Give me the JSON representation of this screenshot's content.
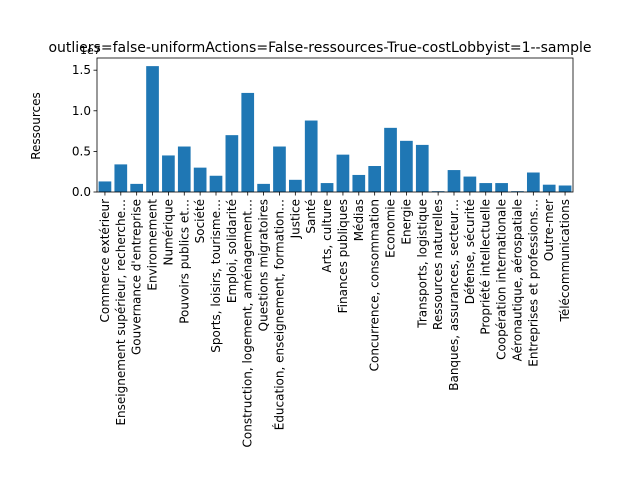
{
  "chart_data": {
    "type": "bar",
    "title": "outliers=false-uniformActions=False-ressources-True-costLobbyist=1--sample",
    "xlabel": "",
    "ylabel": "Ressources",
    "offset_text": "1e7",
    "ylim": [
      0,
      1.65
    ],
    "yticks": [
      0.0,
      0.5,
      1.0,
      1.5
    ],
    "ytick_labels": [
      "0.0",
      "0.5",
      "1.0",
      "1.5"
    ],
    "grid": false,
    "color": "#1f77b4",
    "categories": [
      "Commerce extérieur",
      "Enseignement supérieur, recherche…",
      "Gouvernance d'entreprise",
      "Environnement",
      "Numérique",
      "Pouvoirs publics et…",
      "Société",
      "Sports, loisirs, tourisme…",
      "Emploi, solidarité",
      "Construction, logement, aménagement…",
      "Questions migratoires",
      "Éducation, enseignement, formation…",
      "Justice",
      "Santé",
      "Arts, culture",
      "Finances publiques",
      "Médias",
      "Concurrence, consommation",
      "Economie",
      "Energie",
      "Transports, logistique",
      "Ressources naturelles",
      "Banques, assurances, secteur…",
      "Défense, sécurité",
      "Propriété intellectuelle",
      "Coopération internationale",
      "Aéronautique, aérospatiale",
      "Entreprises et professions…",
      "Outre-mer",
      "Télécommunications"
    ],
    "values": [
      0.13,
      0.34,
      0.1,
      1.55,
      0.45,
      0.56,
      0.3,
      0.2,
      0.7,
      1.22,
      0.1,
      0.56,
      0.15,
      0.88,
      0.11,
      0.46,
      0.21,
      0.32,
      0.79,
      0.63,
      0.58,
      0.01,
      0.27,
      0.19,
      0.11,
      0.11,
      0.01,
      0.24,
      0.09,
      0.08
    ]
  }
}
